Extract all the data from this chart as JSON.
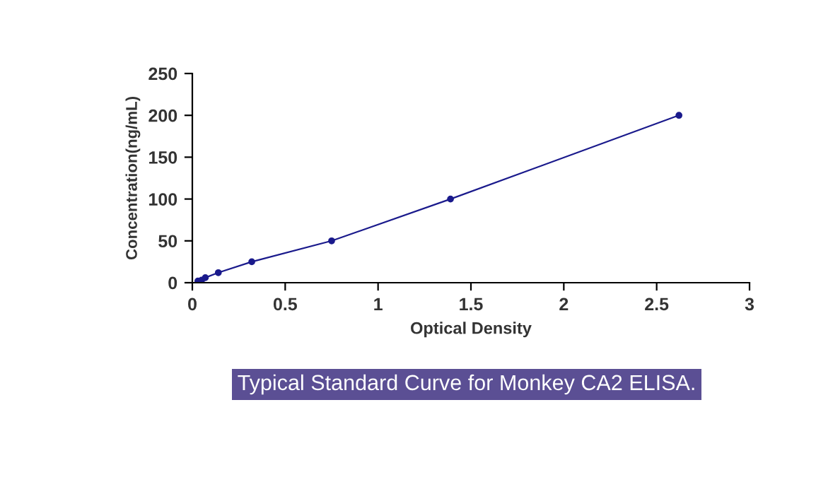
{
  "chart_data": {
    "type": "line",
    "title": "Typical Standard Curve for Monkey CA2 ELISA.",
    "xlabel": "Optical Density",
    "ylabel": "Concentration(ng/mL)",
    "x": [
      0.03,
      0.05,
      0.07,
      0.14,
      0.32,
      0.75,
      1.39,
      2.62
    ],
    "series": [
      {
        "color": "#1a1a8c",
        "values": [
          2,
          3,
          6,
          12,
          25,
          50,
          100,
          200
        ]
      }
    ],
    "xlim": [
      0,
      3
    ],
    "ylim": [
      0,
      250
    ],
    "xticks": [
      0,
      0.5,
      1,
      1.5,
      2,
      2.5,
      3
    ],
    "yticks": [
      0,
      50,
      100,
      150,
      200,
      250
    ],
    "marker": "circle",
    "line_style": "solid",
    "grid": false,
    "legend": false
  }
}
